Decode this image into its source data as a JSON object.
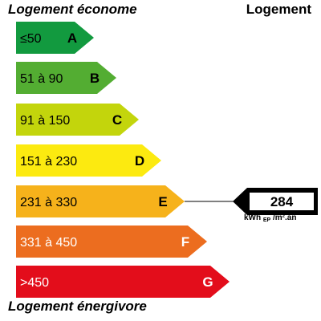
{
  "titles": {
    "top_left": "Logement économe",
    "top_right": "Logement",
    "bottom": "Logement énergivore"
  },
  "classes": [
    {
      "letter": "A",
      "range": "≤50",
      "color": "#129a3f",
      "light_text": false
    },
    {
      "letter": "B",
      "range": "51 à 90",
      "color": "#53ad32",
      "light_text": false
    },
    {
      "letter": "C",
      "range": "91 à 150",
      "color": "#c3d50c",
      "light_text": false
    },
    {
      "letter": "D",
      "range": "151 à 230",
      "color": "#fcea10",
      "light_text": false
    },
    {
      "letter": "E",
      "range": "231 à 330",
      "color": "#f6b21b",
      "light_text": false
    },
    {
      "letter": "F",
      "range": "331 à 450",
      "color": "#ec6d1f",
      "light_text": true
    },
    {
      "letter": "G",
      "range": ">450",
      "color": "#e30d1b",
      "light_text": true
    }
  ],
  "indicator": {
    "value": "284",
    "class": "E",
    "unit_main": "kWh",
    "unit_sub": "EP",
    "unit_tail": "/m².an"
  }
}
